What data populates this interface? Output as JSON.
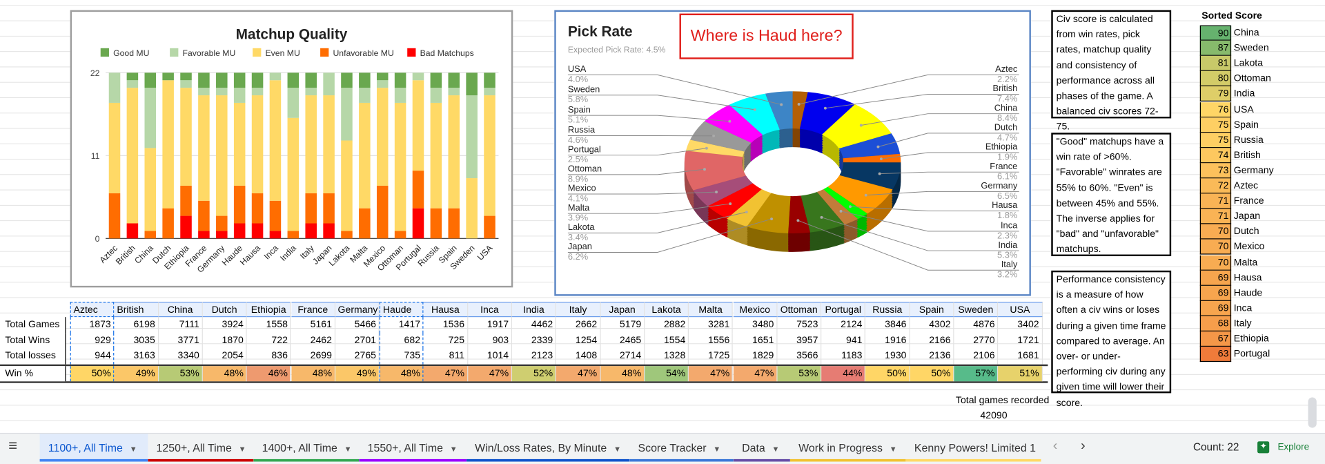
{
  "matchup_chart": {
    "chart_data": {
      "type": "bar",
      "stacked": true,
      "title": "Matchup Quality",
      "legend": [
        "Good MU",
        "Favorable MU",
        "Even MU",
        "Unfavorable MU",
        "Bad Matchups"
      ],
      "legend_position": "top",
      "colors": {
        "good": "#6aa84f",
        "favorable": "#b6d7a8",
        "even": "#ffd966",
        "unfavorable": "#ff6d01",
        "bad": "#ff0000"
      },
      "yticks": [
        "0",
        "11",
        "22"
      ],
      "ylim": [
        0,
        22
      ],
      "categories": [
        "Aztec",
        "British",
        "China",
        "Dutch",
        "Ethiopia",
        "France",
        "Germany",
        "Haude",
        "Hausa",
        "Inca",
        "India",
        "Italy",
        "Japan",
        "Lakota",
        "Malta",
        "Mexico",
        "Ottoman",
        "Portugal",
        "Russia",
        "Spain",
        "Sweden",
        "USA"
      ],
      "series": [
        {
          "name": "Bad Matchups",
          "key": "bad",
          "values": [
            0,
            2,
            0,
            0,
            3,
            1,
            1,
            2,
            2,
            1,
            0,
            2,
            2,
            0,
            0,
            0,
            0,
            4,
            0,
            0,
            0,
            0
          ]
        },
        {
          "name": "Unfavorable MU",
          "key": "unfavorable",
          "values": [
            6,
            0,
            1,
            4,
            4,
            4,
            2,
            5,
            4,
            4,
            1,
            4,
            4,
            1,
            4,
            7,
            1,
            5,
            4,
            4,
            0,
            3
          ]
        },
        {
          "name": "Even MU",
          "key": "even",
          "values": [
            12,
            18,
            11,
            17,
            13,
            14,
            16,
            11,
            13,
            16,
            15,
            13,
            13,
            12,
            14,
            13,
            17,
            12,
            14,
            15,
            8,
            16
          ]
        },
        {
          "name": "Favorable MU",
          "key": "favorable",
          "values": [
            4,
            1,
            8,
            0,
            1,
            1,
            1,
            2,
            1,
            1,
            4,
            1,
            3,
            7,
            2,
            1,
            2,
            1,
            2,
            1,
            11,
            1
          ]
        },
        {
          "name": "Good MU",
          "key": "good",
          "values": [
            0,
            1,
            2,
            1,
            1,
            2,
            2,
            2,
            2,
            0,
            2,
            2,
            0,
            2,
            2,
            1,
            2,
            0,
            2,
            2,
            3,
            2
          ]
        }
      ]
    }
  },
  "pick_chart": {
    "title": "Pick Rate",
    "subtitle": "Expected Pick Rate: 4.5%",
    "callout": "Where is Haud here?",
    "chart_data": {
      "type": "pie",
      "donut": true,
      "slices": [
        {
          "label": "Aztec",
          "value": 2.2,
          "text": "2.2%",
          "color": "#b45f06"
        },
        {
          "label": "British",
          "value": 7.4,
          "text": "7.4%",
          "color": "#0000ee"
        },
        {
          "label": "China",
          "value": 8.4,
          "text": "8.4%",
          "color": "#ffff00"
        },
        {
          "label": "Dutch",
          "value": 4.7,
          "text": "4.7%",
          "color": "#1c4fd6"
        },
        {
          "label": "Ethiopia",
          "value": 1.9,
          "text": "1.9%",
          "color": "#ff6d01"
        },
        {
          "label": "France",
          "value": 6.1,
          "text": "6.1%",
          "color": "#073763"
        },
        {
          "label": "Germany",
          "value": 6.5,
          "text": "6.5%",
          "color": "#ff9900"
        },
        {
          "label": "Hausa",
          "value": 1.8,
          "text": "1.8%",
          "color": "#00ff00"
        },
        {
          "label": "Inca",
          "value": 2.3,
          "text": "2.3%",
          "color": "#c27c3a"
        },
        {
          "label": "India",
          "value": 5.3,
          "text": "5.3%",
          "color": "#38761d"
        },
        {
          "label": "Italy",
          "value": 3.2,
          "text": "3.2%",
          "color": "#990000"
        },
        {
          "label": "Japan",
          "value": 6.2,
          "text": "6.2%",
          "color": "#bf9000"
        },
        {
          "label": "Lakota",
          "value": 3.4,
          "text": "3.4%",
          "color": "#f1c232"
        },
        {
          "label": "Malta",
          "value": 3.9,
          "text": "3.9%",
          "color": "#ff0000"
        },
        {
          "label": "Mexico",
          "value": 4.1,
          "text": "4.1%",
          "color": "#a64d79"
        },
        {
          "label": "Ottoman",
          "value": 8.9,
          "text": "8.9%",
          "color": "#e06666"
        },
        {
          "label": "Portugal",
          "value": 2.5,
          "text": "2.5%",
          "color": "#ffd966"
        },
        {
          "label": "Russia",
          "value": 4.6,
          "text": "4.6%",
          "color": "#999999"
        },
        {
          "label": "Spain",
          "value": 5.1,
          "text": "5.1%",
          "color": "#ff00ff"
        },
        {
          "label": "Sweden",
          "value": 5.8,
          "text": "5.8%",
          "color": "#00ffff"
        },
        {
          "label": "USA",
          "value": 4.0,
          "text": "4.0%",
          "color": "#3d85c6"
        }
      ]
    }
  },
  "table": {
    "columns": [
      "Aztec",
      "British",
      "China",
      "Dutch",
      "Ethiopia",
      "France",
      "Germany",
      "Haude",
      "Hausa",
      "Inca",
      "India",
      "Italy",
      "Japan",
      "Lakota",
      "Malta",
      "Mexico",
      "Ottoman",
      "Portugal",
      "Russia",
      "Spain",
      "Sweden",
      "USA"
    ],
    "rows": [
      {
        "label": "Total Games",
        "values": [
          "1873",
          "6198",
          "7111",
          "3924",
          "1558",
          "5161",
          "5466",
          "1417",
          "1536",
          "1917",
          "4462",
          "2662",
          "5179",
          "2882",
          "3281",
          "3480",
          "7523",
          "2124",
          "3846",
          "4302",
          "4876",
          "3402"
        ]
      },
      {
        "label": "Total Wins",
        "values": [
          "929",
          "3035",
          "3771",
          "1870",
          "722",
          "2462",
          "2701",
          "682",
          "725",
          "903",
          "2339",
          "1254",
          "2465",
          "1554",
          "1556",
          "1651",
          "3957",
          "941",
          "1916",
          "2166",
          "2770",
          "1721"
        ]
      },
      {
        "label": "Total losses",
        "values": [
          "944",
          "3163",
          "3340",
          "2054",
          "836",
          "2699",
          "2765",
          "735",
          "811",
          "1014",
          "2123",
          "1408",
          "2714",
          "1328",
          "1725",
          "1829",
          "3566",
          "1183",
          "1930",
          "2136",
          "2106",
          "1681"
        ]
      },
      {
        "label": "Win %",
        "values": [
          "50%",
          "49%",
          "53%",
          "48%",
          "46%",
          "48%",
          "49%",
          "48%",
          "47%",
          "47%",
          "52%",
          "47%",
          "48%",
          "54%",
          "47%",
          "47%",
          "53%",
          "44%",
          "50%",
          "50%",
          "57%",
          "51%"
        ]
      }
    ],
    "total_label": "Total games recorded",
    "total_value": "42090"
  },
  "notes": [
    "Civ score is calculated from win rates, pick rates, matchup quality and consistency of performance across all phases of the game. A balanced civ scores 72-75.",
    "\"Good\" matchups have a win rate of >60%. \"Favorable\" winrates are 55% to 60%. \"Even\" is between 45% and 55%. The inverse applies for \"bad\" and \"unfavorable\" matchups.",
    "Performance consistency is a measure of how often a civ wins or loses during a given time frame compared to average. An over- or under-performing civ during any given time will lower their score."
  ],
  "sorted_score": {
    "title": "Sorted Score",
    "items": [
      {
        "score": "90",
        "civ": "China"
      },
      {
        "score": "87",
        "civ": "Sweden"
      },
      {
        "score": "81",
        "civ": "Lakota"
      },
      {
        "score": "80",
        "civ": "Ottoman"
      },
      {
        "score": "79",
        "civ": "India"
      },
      {
        "score": "76",
        "civ": "USA"
      },
      {
        "score": "75",
        "civ": "Spain"
      },
      {
        "score": "75",
        "civ": "Russia"
      },
      {
        "score": "74",
        "civ": "British"
      },
      {
        "score": "73",
        "civ": "Germany"
      },
      {
        "score": "72",
        "civ": "Aztec"
      },
      {
        "score": "71",
        "civ": "France"
      },
      {
        "score": "71",
        "civ": "Japan"
      },
      {
        "score": "70",
        "civ": "Dutch"
      },
      {
        "score": "70",
        "civ": "Mexico"
      },
      {
        "score": "70",
        "civ": "Malta"
      },
      {
        "score": "69",
        "civ": "Hausa"
      },
      {
        "score": "69",
        "civ": "Haude"
      },
      {
        "score": "69",
        "civ": "Inca"
      },
      {
        "score": "68",
        "civ": "Italy"
      },
      {
        "score": "67",
        "civ": "Ethiopia"
      },
      {
        "score": "63",
        "civ": "Portugal"
      }
    ]
  },
  "tabs": [
    {
      "label": "1100+, All Time",
      "active": true,
      "color": "#4285f4"
    },
    {
      "label": "1250+, All Time",
      "color": "#cc0000"
    },
    {
      "label": "1400+, All Time",
      "color": "#34a853"
    },
    {
      "label": "1550+, All Time",
      "color": "#9900ff"
    },
    {
      "label": "Win/Loss Rates, By Minute",
      "color": "#1155cc"
    },
    {
      "label": "Score Tracker",
      "color": "#3c78d8"
    },
    {
      "label": "Data",
      "color": "#674ea7"
    },
    {
      "label": "Work in Progress",
      "color": "#f1c232"
    },
    {
      "label": "Kenny Powers! Limited 1",
      "color": "#ffd966"
    }
  ],
  "statusbar": {
    "count": "Count: 22",
    "explore": "Explore"
  }
}
